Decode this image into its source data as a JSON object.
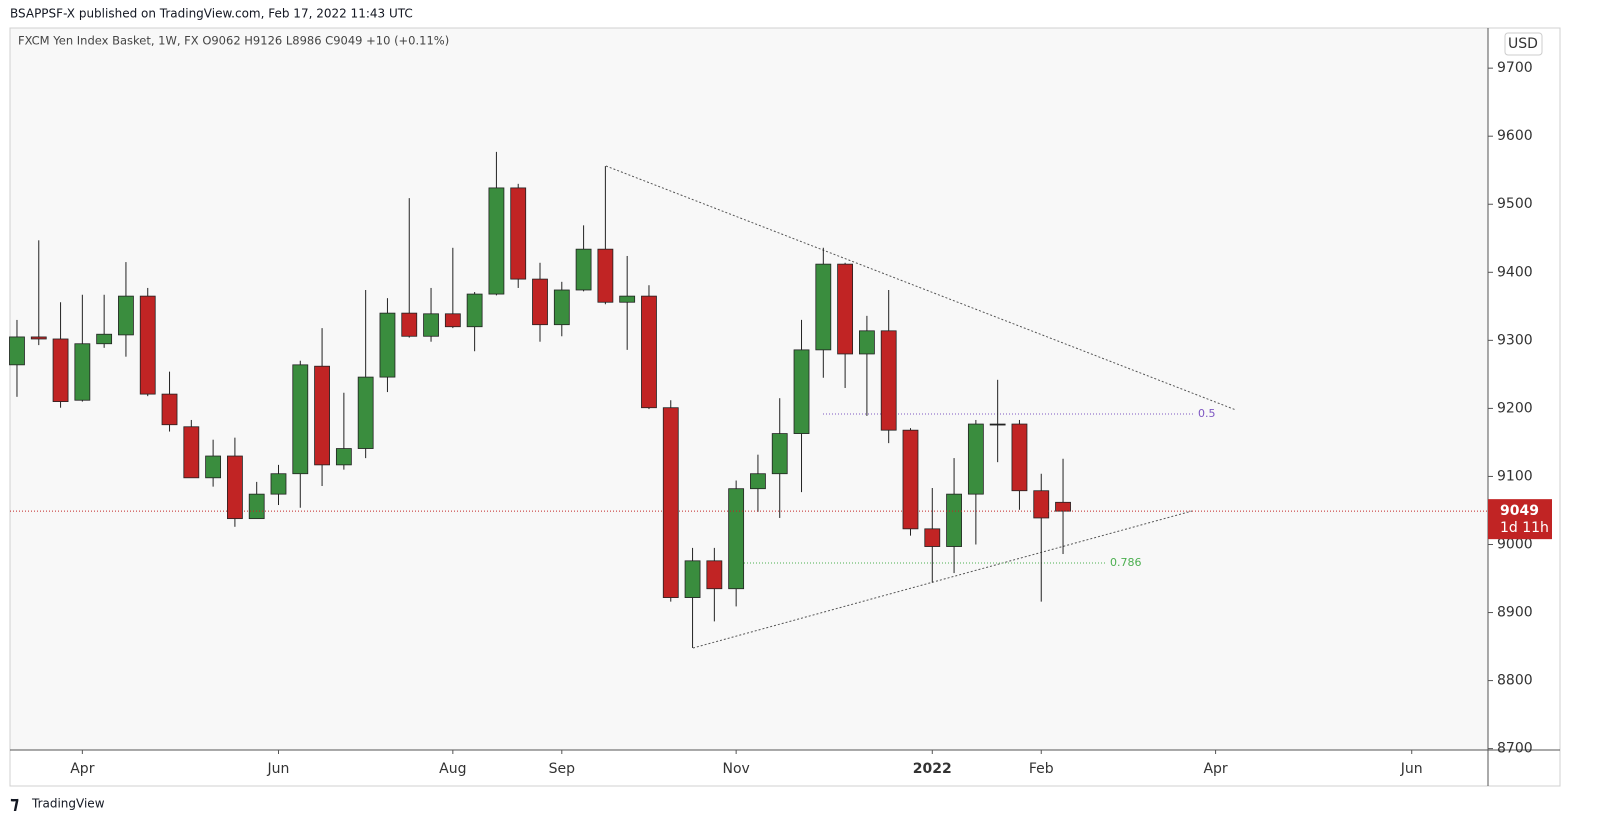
{
  "chart_data": {
    "type": "candlestick",
    "header": "BSAPPSF-X published on TradingView.com, Feb 17, 2022 11:43 UTC",
    "legend": "FXCM Yen Index Basket, 1W, FX  O9062  H9126  L8986  C9049  +10 (+0.11%)",
    "currency": "USD",
    "footer": "TradingView",
    "open": [
      9264,
      9305,
      9302,
      9212,
      9295,
      9308,
      9365,
      9221,
      9173,
      9098,
      9130,
      9038,
      9074,
      9104,
      9262,
      9117,
      9141,
      9246,
      9340,
      9306,
      9339,
      9320,
      9368,
      9524,
      9390,
      9323,
      9374,
      9434,
      9356,
      9365,
      9201,
      8922,
      8976,
      8935,
      9082,
      9104,
      9163,
      9286,
      9412,
      9280,
      9314,
      9168,
      9023,
      8997,
      9074,
      9177,
      9177,
      9079,
      9062
    ],
    "high": [
      9330,
      9447,
      9356,
      9367,
      9367,
      9415,
      9377,
      9254,
      9183,
      9154,
      9157,
      9092,
      9117,
      9270,
      9318,
      9223,
      9374,
      9362,
      9509,
      9377,
      9436,
      9371,
      9577,
      9530,
      9414,
      9386,
      9469,
      9556,
      9424,
      9381,
      9212,
      8995,
      8995,
      9094,
      9132,
      9215,
      9330,
      9436,
      9414,
      9336,
      9374,
      9171,
      9083,
      9127,
      9183,
      9242,
      9183,
      9104,
      9126
    ],
    "low": [
      9217,
      9293,
      9201,
      9210,
      9289,
      9276,
      9218,
      9166,
      9098,
      9085,
      9026,
      9038,
      9058,
      9054,
      9086,
      9110,
      9127,
      9224,
      9304,
      9298,
      9318,
      9284,
      9366,
      9377,
      9298,
      9306,
      9372,
      9353,
      9286,
      9199,
      8916,
      8848,
      8887,
      8909,
      9048,
      9039,
      9077,
      9245,
      9230,
      9189,
      9149,
      9013,
      8944,
      8958,
      9000,
      9121,
      9051,
      8916,
      8986
    ],
    "close": [
      9305,
      9302,
      9210,
      9295,
      9309,
      9365,
      9221,
      9176,
      9098,
      9130,
      9038,
      9074,
      9104,
      9264,
      9117,
      9141,
      9246,
      9340,
      9306,
      9339,
      9320,
      9368,
      9524,
      9390,
      9323,
      9374,
      9434,
      9356,
      9365,
      9201,
      8922,
      8976,
      8935,
      9082,
      9104,
      9163,
      9286,
      9412,
      9280,
      9314,
      9168,
      9023,
      8997,
      9074,
      9177,
      9177,
      9079,
      9039,
      9049
    ],
    "up_color": "#3a8d3e",
    "down_color": "#c12424",
    "xlim": [
      -0.32,
      67.5
    ],
    "xticks": [
      {
        "value": 3,
        "label": "Apr"
      },
      {
        "value": 12,
        "label": "Jun"
      },
      {
        "value": 20,
        "label": "Aug"
      },
      {
        "value": 25,
        "label": "Sep"
      },
      {
        "value": 33,
        "label": "Nov"
      },
      {
        "value": 42,
        "label": "2022"
      },
      {
        "value": 47,
        "label": "Feb"
      },
      {
        "value": 55,
        "label": "Apr"
      },
      {
        "value": 64,
        "label": "Jun"
      }
    ],
    "ylim": [
      8698,
      9759
    ],
    "yticks": [
      8700,
      8800,
      8900,
      9000,
      9100,
      9200,
      9300,
      9400,
      9500,
      9600,
      9700
    ],
    "last_price": 9049,
    "countdown": "1d 11h",
    "fib_labels": [
      "0.5",
      "0.786"
    ]
  }
}
